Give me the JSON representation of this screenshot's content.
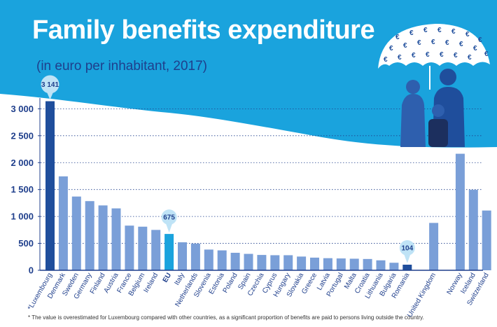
{
  "chart_data": {
    "type": "bar",
    "title": "Family benefits expenditure",
    "subtitle": "(in euro per inhabitant, 2017)",
    "ylim": [
      0,
      3200
    ],
    "yticks": [
      0,
      500,
      1000,
      1500,
      2000,
      2500,
      3000
    ],
    "ytick_labels": [
      "0",
      "500",
      "1 000",
      "1 500",
      "2 000",
      "2 500",
      "3 000"
    ],
    "categories": [
      "*Luxembourg",
      "Denmark",
      "Sweden",
      "Germany",
      "Finland",
      "Austria",
      "France",
      "Belgium",
      "Ireland",
      "EU",
      "Italy",
      "Netherlands",
      "Slovenia",
      "Estonia",
      "Poland",
      "Spain",
      "Czechia",
      "Cyprus",
      "Hungary",
      "Slovakia",
      "Greece",
      "Latvia",
      "Portugal",
      "Malta",
      "Croatia",
      "Lithuania",
      "Bulgaria",
      "Romania",
      "",
      "United Kingdom",
      "",
      "Norway",
      "Iceland",
      "Switzerland"
    ],
    "values": [
      3141,
      1745,
      1370,
      1285,
      1205,
      1150,
      830,
      810,
      750,
      675,
      520,
      495,
      385,
      370,
      325,
      305,
      285,
      280,
      280,
      255,
      235,
      225,
      220,
      215,
      210,
      185,
      140,
      104,
      null,
      880,
      null,
      2165,
      1495,
      1110
    ],
    "highlights": {
      "*Luxembourg": "#1f4e9c",
      "EU": "#1aa3dd",
      "Romania": "#1f4e9c"
    },
    "data_labels": [
      {
        "category": "*Luxembourg",
        "text": "3 141"
      },
      {
        "category": "EU",
        "text": "675"
      },
      {
        "category": "Romania",
        "text": "104"
      }
    ]
  },
  "footnote": "* The value is overestimated for Luxembourg compared with other countries, as a significant proportion of benefits are paid to persons living outside the country.",
  "colors": {
    "bar": "#7a9fd8",
    "header": "#1aa3dd",
    "text": "#1f3f8c",
    "callout": "#bfe3f6"
  }
}
